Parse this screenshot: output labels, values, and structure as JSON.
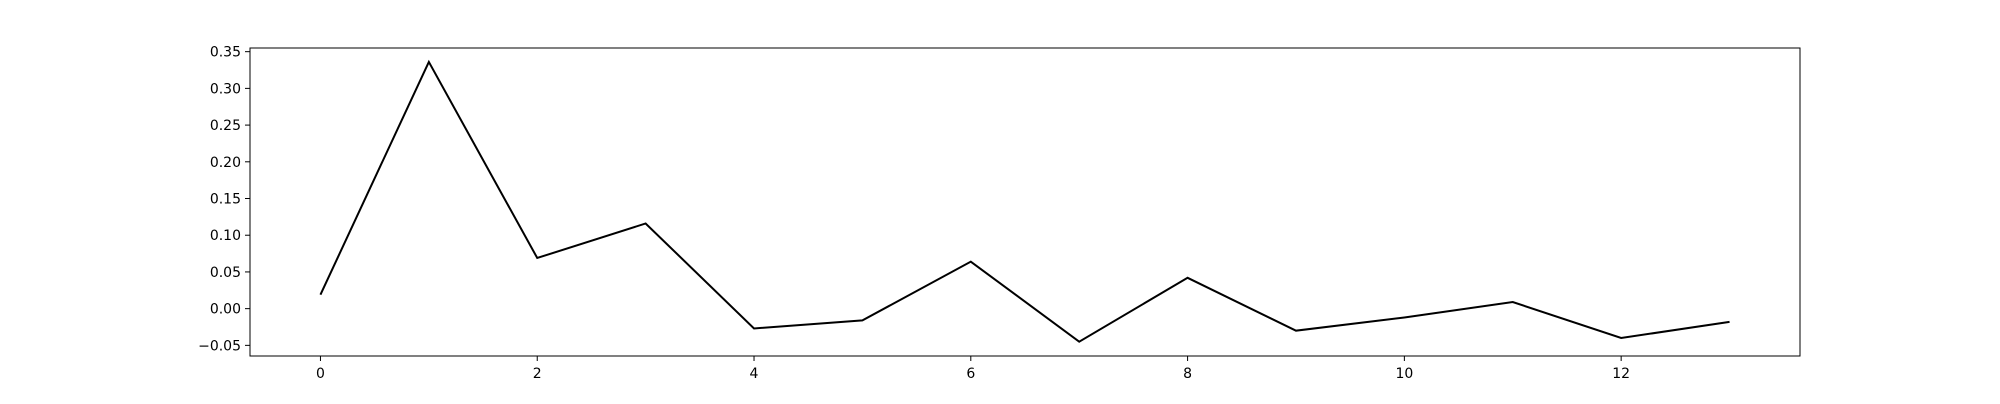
{
  "chart_data": {
    "type": "line",
    "title": "",
    "xlabel": "",
    "ylabel": "",
    "x": [
      0,
      1,
      2,
      3,
      4,
      5,
      6,
      7,
      8,
      9,
      10,
      11,
      12,
      13
    ],
    "series": [
      {
        "values": [
          0.019,
          0.336,
          0.069,
          0.116,
          -0.027,
          -0.016,
          0.064,
          -0.045,
          0.042,
          -0.03,
          -0.012,
          0.009,
          -0.04,
          -0.018
        ],
        "color": "#000000"
      }
    ],
    "xlim": [
      -0.65,
      13.65
    ],
    "ylim": [
      -0.0645,
      0.355
    ],
    "xticks": [
      0,
      2,
      4,
      6,
      8,
      10,
      12
    ],
    "xtick_labels": [
      "0",
      "2",
      "4",
      "6",
      "8",
      "10",
      "12"
    ],
    "yticks": [
      -0.05,
      0.0,
      0.05,
      0.1,
      0.15,
      0.2,
      0.25,
      0.3,
      0.35
    ],
    "ytick_labels": [
      "−0.05",
      "0.00",
      "0.05",
      "0.10",
      "0.15",
      "0.20",
      "0.25",
      "0.30",
      "0.35"
    ],
    "grid": false,
    "legend": false
  }
}
